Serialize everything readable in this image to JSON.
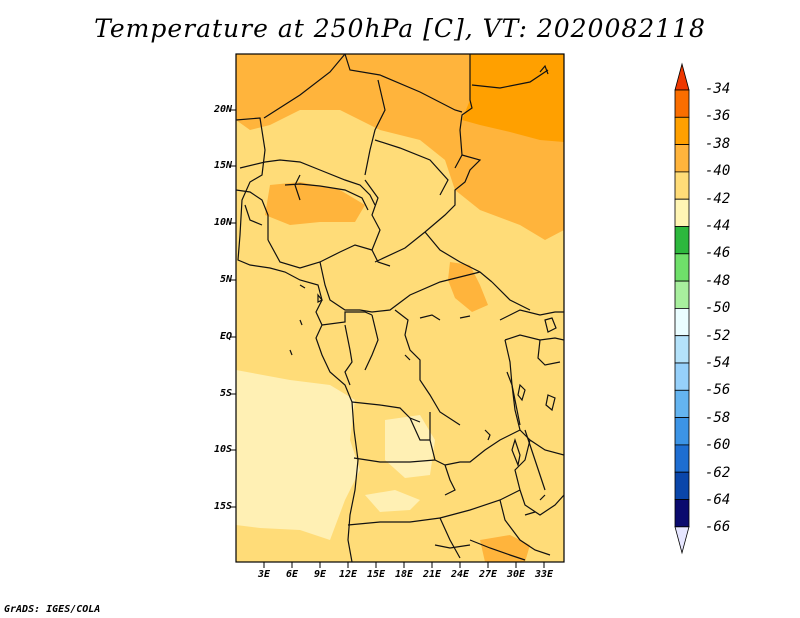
{
  "title": "Temperature at 250hPa [C], VT: 2020082118",
  "credit": "GrADS: IGES/COLA",
  "lat_labels": [
    "20N",
    "15N",
    "10N",
    "5N",
    "EQ",
    "5S",
    "10S",
    "15S"
  ],
  "lon_labels": [
    "3E",
    "6E",
    "9E",
    "12E",
    "15E",
    "18E",
    "21E",
    "24E",
    "27E",
    "30E",
    "33E"
  ],
  "colorbar": {
    "labels": [
      "-34",
      "-36",
      "-38",
      "-40",
      "-42",
      "-44",
      "-46",
      "-48",
      "-50",
      "-52",
      "-54",
      "-56",
      "-58",
      "-60",
      "-62",
      "-64",
      "-66"
    ],
    "colors": [
      "#e64000",
      "#fa6e00",
      "#ffa000",
      "#ffb43c",
      "#ffdc78",
      "#fff5b4",
      "#2db83d",
      "#6fe06a",
      "#a8ef9e",
      "#eafdff",
      "#b4e2fa",
      "#96d0fa",
      "#64b4f0",
      "#3c94e6",
      "#1e6ed2",
      "#0a46aa",
      "#0a0a6e"
    ],
    "arrow_top_color": "#ee3700",
    "arrow_bottom_color": "#e6e6ff"
  },
  "field_colors": {
    "dark_orange": "#ffa000",
    "orange": "#ffb43c",
    "light_orange": "#ffdc78",
    "pale_yellow": "#fff0b4"
  }
}
